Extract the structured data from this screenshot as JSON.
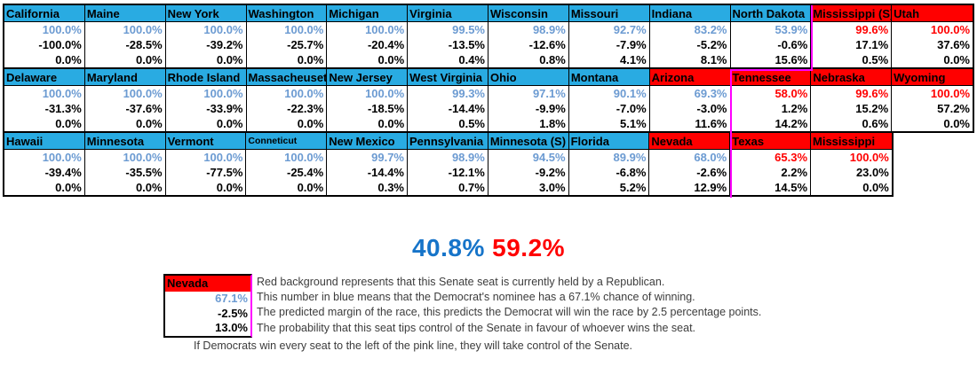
{
  "chart_data": {
    "type": "table",
    "columns": 12,
    "pink_line_after_column": [
      10,
      9,
      9
    ],
    "rows": [
      {
        "cells": [
          {
            "state": "California",
            "held": "D",
            "win": "100.0%",
            "win_style": "dem",
            "margin": "-100.0%",
            "tip": "0.0%"
          },
          {
            "state": "Maine",
            "held": "D",
            "win": "100.0%",
            "win_style": "dem",
            "margin": "-28.5%",
            "tip": "0.0%"
          },
          {
            "state": "New York",
            "held": "D",
            "win": "100.0%",
            "win_style": "dem",
            "margin": "-39.2%",
            "tip": "0.0%"
          },
          {
            "state": "Washington",
            "held": "D",
            "win": "100.0%",
            "win_style": "dem",
            "margin": "-25.7%",
            "tip": "0.0%"
          },
          {
            "state": "Michigan",
            "held": "D",
            "win": "100.0%",
            "win_style": "dem",
            "margin": "-20.4%",
            "tip": "0.0%"
          },
          {
            "state": "Virginia",
            "held": "D",
            "win": "99.5%",
            "win_style": "dem",
            "margin": "-13.5%",
            "tip": "0.4%"
          },
          {
            "state": "Wisconsin",
            "held": "D",
            "win": "98.9%",
            "win_style": "dem",
            "margin": "-12.6%",
            "tip": "0.8%"
          },
          {
            "state": "Missouri",
            "held": "D",
            "win": "92.7%",
            "win_style": "dem",
            "margin": "-7.9%",
            "tip": "4.1%"
          },
          {
            "state": "Indiana",
            "held": "D",
            "win": "83.2%",
            "win_style": "dem",
            "margin": "-5.2%",
            "tip": "8.1%"
          },
          {
            "state": "North Dakota",
            "held": "D",
            "win": "53.9%",
            "win_style": "dem",
            "margin": "-0.6%",
            "tip": "15.6%"
          },
          {
            "state": "Mississippi (S)",
            "held": "R",
            "win": "99.6%",
            "win_style": "rep",
            "margin": "17.1%",
            "tip": "0.5%"
          },
          {
            "state": "Utah",
            "held": "R",
            "win": "100.0%",
            "win_style": "rep",
            "margin": "37.6%",
            "tip": "0.0%"
          }
        ]
      },
      {
        "cells": [
          {
            "state": "Delaware",
            "held": "D",
            "win": "100.0%",
            "win_style": "dem",
            "margin": "-31.3%",
            "tip": "0.0%"
          },
          {
            "state": "Maryland",
            "held": "D",
            "win": "100.0%",
            "win_style": "dem",
            "margin": "-37.6%",
            "tip": "0.0%"
          },
          {
            "state": "Rhode Island",
            "held": "D",
            "win": "100.0%",
            "win_style": "dem",
            "margin": "-33.9%",
            "tip": "0.0%"
          },
          {
            "state": "Massacheuset",
            "held": "D",
            "win": "100.0%",
            "win_style": "dem",
            "margin": "-22.3%",
            "tip": "0.0%"
          },
          {
            "state": "New Jersey",
            "held": "D",
            "win": "100.0%",
            "win_style": "dem",
            "margin": "-18.5%",
            "tip": "0.0%"
          },
          {
            "state": "West Virginia",
            "held": "D",
            "win": "99.3%",
            "win_style": "dem",
            "margin": "-14.4%",
            "tip": "0.5%"
          },
          {
            "state": "Ohio",
            "held": "D",
            "win": "97.1%",
            "win_style": "dem",
            "margin": "-9.9%",
            "tip": "1.8%"
          },
          {
            "state": "Montana",
            "held": "D",
            "win": "90.1%",
            "win_style": "dem",
            "margin": "-7.0%",
            "tip": "5.1%"
          },
          {
            "state": "Arizona",
            "held": "R",
            "win": "69.3%",
            "win_style": "dem",
            "margin": "-3.0%",
            "tip": "11.6%"
          },
          {
            "state": "Tennessee",
            "held": "R",
            "win": "58.0%",
            "win_style": "rep",
            "margin": "1.2%",
            "tip": "14.2%"
          },
          {
            "state": "Nebraska",
            "held": "R",
            "win": "99.6%",
            "win_style": "rep",
            "margin": "15.2%",
            "tip": "0.6%"
          },
          {
            "state": "Wyoming",
            "held": "R",
            "win": "100.0%",
            "win_style": "rep",
            "margin": "57.2%",
            "tip": "0.0%"
          }
        ]
      },
      {
        "cells": [
          {
            "state": "Hawaii",
            "held": "D",
            "win": "100.0%",
            "win_style": "dem",
            "margin": "-39.4%",
            "tip": "0.0%"
          },
          {
            "state": "Minnesota",
            "held": "D",
            "win": "100.0%",
            "win_style": "dem",
            "margin": "-35.5%",
            "tip": "0.0%"
          },
          {
            "state": "Vermont",
            "held": "D",
            "win": "100.0%",
            "win_style": "dem",
            "margin": "-77.5%",
            "tip": "0.0%"
          },
          {
            "state": "Conneticut",
            "held": "D",
            "win": "100.0%",
            "win_style": "dem",
            "margin": "-25.4%",
            "tip": "0.0%",
            "small_header": true
          },
          {
            "state": "New Mexico",
            "held": "D",
            "win": "99.7%",
            "win_style": "dem",
            "margin": "-14.4%",
            "tip": "0.3%"
          },
          {
            "state": "Pennsylvania",
            "held": "D",
            "win": "98.9%",
            "win_style": "dem",
            "margin": "-12.1%",
            "tip": "0.7%"
          },
          {
            "state": "Minnesota (S)",
            "held": "D",
            "win": "94.5%",
            "win_style": "dem",
            "margin": "-9.2%",
            "tip": "3.0%"
          },
          {
            "state": "Florida",
            "held": "D",
            "win": "89.9%",
            "win_style": "dem",
            "margin": "-6.8%",
            "tip": "5.2%"
          },
          {
            "state": "Nevada",
            "held": "R",
            "win": "68.0%",
            "win_style": "dem",
            "margin": "-2.6%",
            "tip": "12.9%"
          },
          {
            "state": "Texas",
            "held": "R",
            "win": "65.3%",
            "win_style": "rep",
            "margin": "2.2%",
            "tip": "14.5%"
          },
          {
            "state": "Mississippi",
            "held": "R",
            "win": "100.0%",
            "win_style": "rep",
            "margin": "23.0%",
            "tip": "0.0%"
          }
        ]
      }
    ],
    "summary": {
      "dem_control_probability": "40.8%",
      "rep_control_probability": "59.2%"
    }
  },
  "legend": {
    "example": {
      "state": "Nevada",
      "win": "67.1%",
      "margin": "-2.5%",
      "tip": "13.0%"
    },
    "lines": [
      "Red background represents that this Senate seat is currently held by a Republican.",
      "This number in blue means that the Democrat's nominee has a 67.1% chance of winning.",
      "The predicted margin of the race, this predicts the Democrat will win the race by 2.5 percentage points.",
      "The probability that this seat tips control of the Senate in favour of whoever wins the seat."
    ],
    "footnote": "If Democrats win every seat to the left of the pink line, they will take control of the Senate."
  },
  "colors": {
    "dem_header": "#29ABE2",
    "rep_header": "#FF0000",
    "dem_value": "#6C9BD2",
    "rep_value": "#FF0000",
    "pink_line": "#FF00FF",
    "summary_dem": "#1674C9",
    "summary_rep": "#FF0000"
  }
}
